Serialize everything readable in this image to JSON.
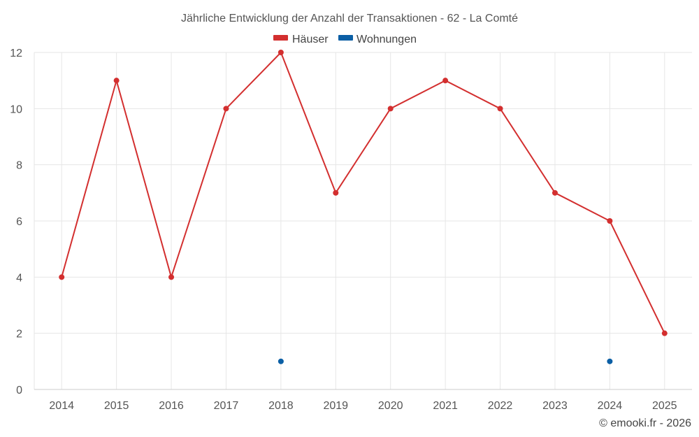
{
  "chart_data": {
    "type": "line",
    "title": "Jährliche Entwicklung der Anzahl der Transaktionen - 62 - La Comté",
    "categories": [
      "2014",
      "2015",
      "2016",
      "2017",
      "2018",
      "2019",
      "2020",
      "2021",
      "2022",
      "2023",
      "2024",
      "2025"
    ],
    "series": [
      {
        "name": "Häuser",
        "color": "#d32f2f",
        "values": [
          4,
          11,
          4,
          10,
          12,
          7,
          10,
          11,
          10,
          7,
          6,
          2
        ]
      },
      {
        "name": "Wohnungen",
        "color": "#0b5fa5",
        "values": [
          null,
          null,
          null,
          null,
          1,
          null,
          null,
          null,
          null,
          null,
          1,
          null
        ]
      }
    ],
    "ylim": [
      0,
      12
    ],
    "yticks": [
      0,
      2,
      4,
      6,
      8,
      10,
      12
    ],
    "xlabel": "",
    "ylabel": "",
    "grid": true,
    "legend": "top-center"
  },
  "credit": "© emooki.fr - 2026"
}
